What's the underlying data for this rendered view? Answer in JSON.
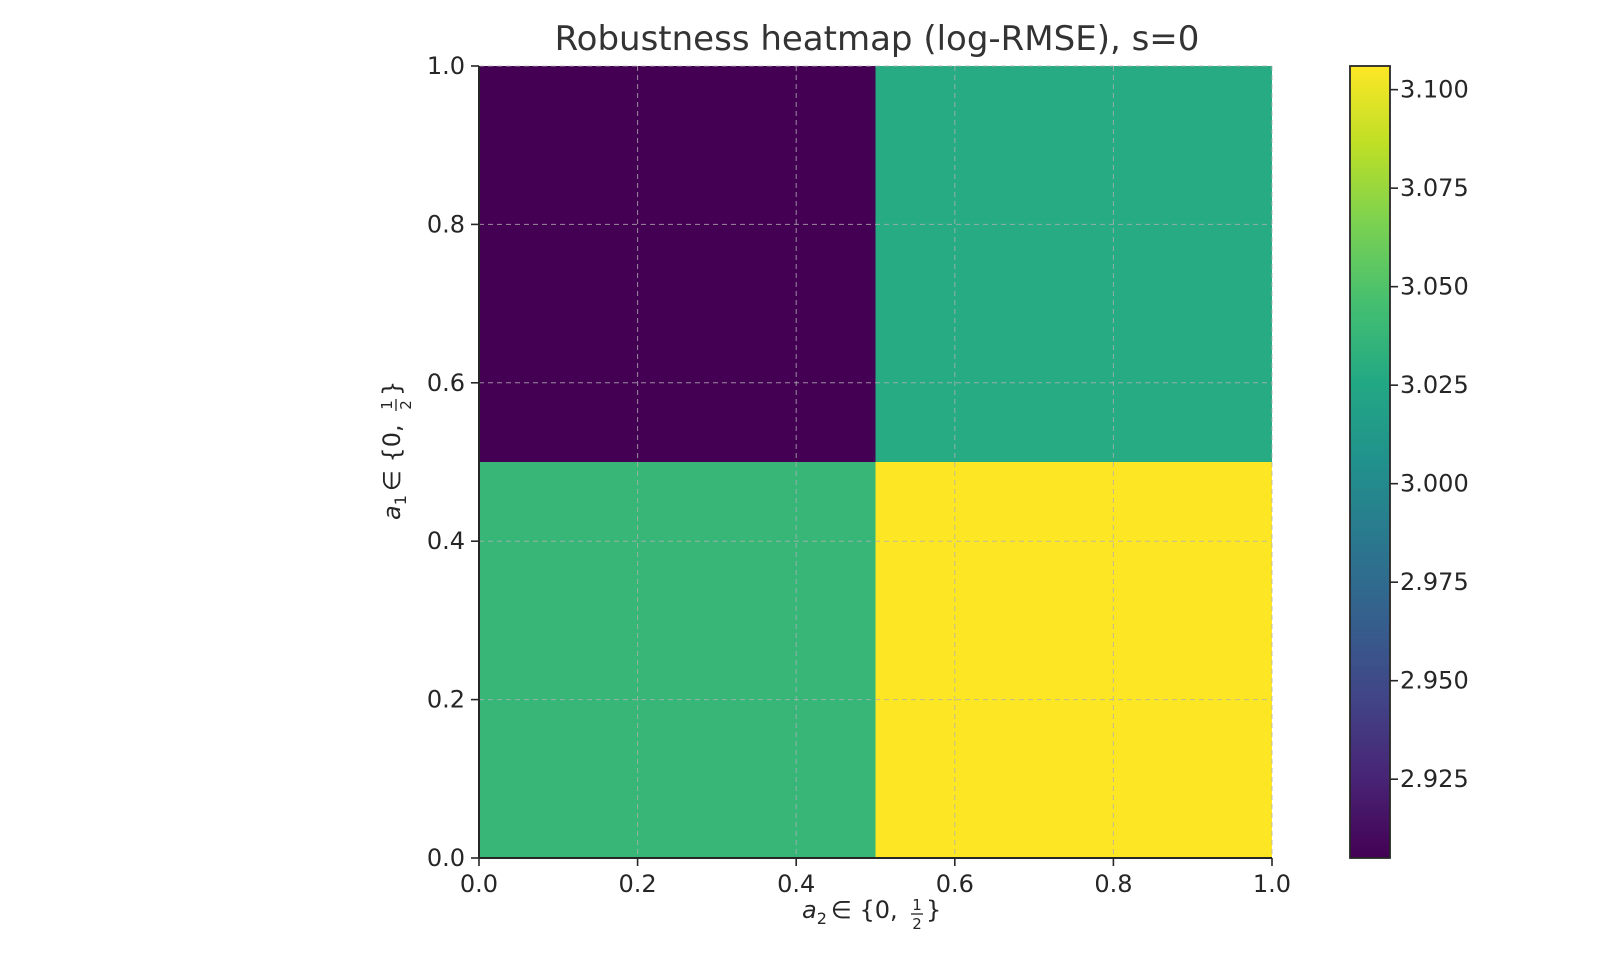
{
  "chart_data": {
    "type": "heatmap",
    "title": "Robustness heatmap (log-RMSE), s=0",
    "xlabel": {
      "var": "a",
      "sub": "2",
      "set_open": "∈ {0,",
      "frac_num": "1",
      "frac_den": "2",
      "set_close": "}"
    },
    "ylabel": {
      "var": "a",
      "sub": "1",
      "set_open": "∈ {0,",
      "frac_num": "1",
      "frac_den": "2",
      "set_close": "}"
    },
    "xlim": [
      0.0,
      1.0
    ],
    "ylim": [
      0.0,
      1.0
    ],
    "x_ticks": [
      0.0,
      0.2,
      0.4,
      0.6,
      0.8,
      1.0
    ],
    "x_tick_labels": [
      "0.0",
      "0.2",
      "0.4",
      "0.6",
      "0.8",
      "1.0"
    ],
    "y_ticks": [
      0.0,
      0.2,
      0.4,
      0.6,
      0.8,
      1.0
    ],
    "y_tick_labels": [
      "0.0",
      "0.2",
      "0.4",
      "0.6",
      "0.8",
      "1.0"
    ],
    "x_edges": [
      0.0,
      0.5,
      1.0
    ],
    "y_edges": [
      0.0,
      0.5,
      1.0
    ],
    "values": [
      [
        3.038,
        3.106
      ],
      [
        2.905,
        3.028
      ]
    ],
    "values_row_order": "rows from y=0 (bottom) to y=1 (top); columns from x=0 to x=1",
    "grid": true,
    "colormap": "viridis",
    "colorbar": {
      "vmin": 2.905,
      "vmax": 3.106,
      "ticks": [
        2.925,
        2.95,
        2.975,
        3.0,
        3.025,
        3.05,
        3.075,
        3.1
      ],
      "tick_labels": [
        "2.925",
        "2.950",
        "2.975",
        "3.000",
        "3.025",
        "3.050",
        "3.075",
        "3.100"
      ],
      "placement": "right"
    },
    "colors": {
      "text": "#262626",
      "title": "#333333",
      "axis": "#262626",
      "grid": "#b0b0b0"
    }
  }
}
